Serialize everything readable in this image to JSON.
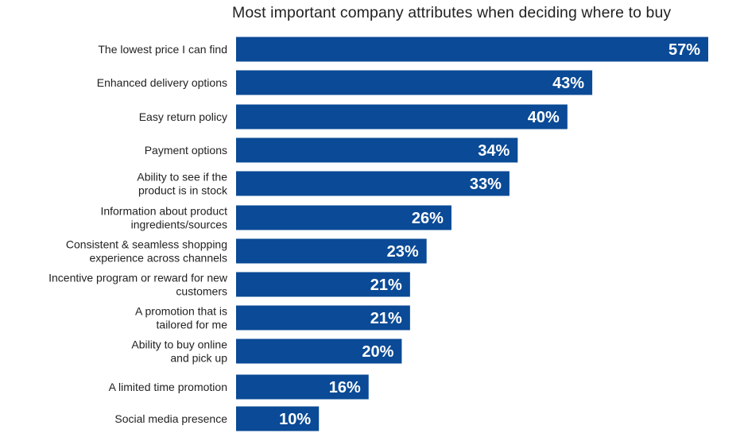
{
  "chart_data": {
    "type": "bar",
    "orientation": "horizontal",
    "title": "Most important company attributes when deciding where to buy",
    "xlabel": "",
    "ylabel": "",
    "xlim": [
      0,
      57
    ],
    "grid": false,
    "legend": "none",
    "bar_color": "#0a4a96",
    "value_suffix": "%",
    "categories": [
      "The lowest price I can find",
      "Enhanced delivery options",
      "Easy return policy",
      "Payment options",
      "Ability to see if the product is in stock",
      "Information about product ingredients/sources",
      "Consistent & seamless shopping experience across channels",
      "Incentive program or reward for new customers",
      "A promotion that is tailored for me",
      "Ability to buy online and pick up",
      "A limited time promotion",
      "Social media presence"
    ],
    "category_lines": [
      [
        "The lowest price I can find"
      ],
      [
        "Enhanced delivery options"
      ],
      [
        "Easy return policy"
      ],
      [
        "Payment options"
      ],
      [
        "Ability to see if the",
        "product is in stock"
      ],
      [
        "Information about product",
        "ingredients/sources"
      ],
      [
        "Consistent & seamless shopping",
        "experience across channels"
      ],
      [
        "Incentive program or reward for new",
        "customers"
      ],
      [
        "A promotion that is",
        "tailored for me"
      ],
      [
        "Ability to buy online",
        "and pick up"
      ],
      [
        "A limited time promotion"
      ],
      [
        "Social media presence"
      ]
    ],
    "values": [
      57,
      43,
      40,
      34,
      33,
      26,
      23,
      21,
      21,
      20,
      16,
      10
    ],
    "value_labels": [
      "57%",
      "43%",
      "40%",
      "34%",
      "33%",
      "26%",
      "23%",
      "21%",
      "21%",
      "20%",
      "16%",
      "10%"
    ]
  }
}
